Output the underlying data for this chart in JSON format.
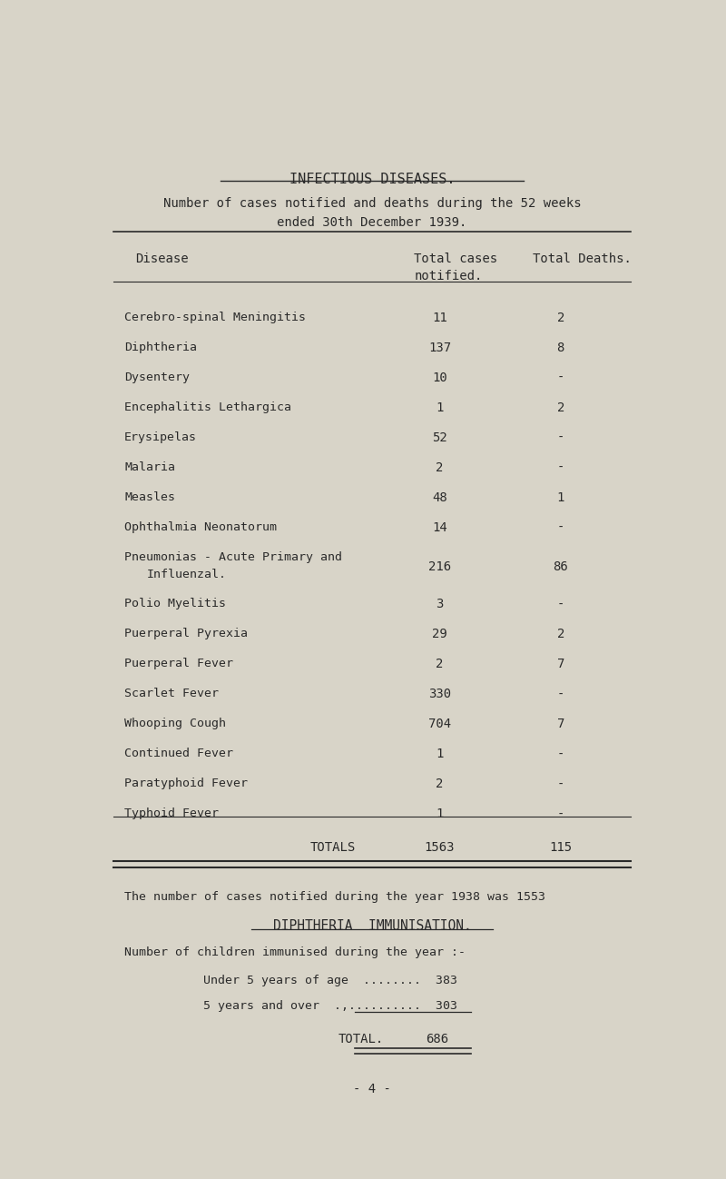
{
  "bg_color": "#d8d4c8",
  "text_color": "#2a2a2a",
  "title": "INFECTIOUS DISEASES.",
  "subtitle1": "Number of cases notified and deaths during the 52 weeks",
  "subtitle2": "ended 30th December 1939.",
  "diseases": [
    [
      "Cerebro-spinal Meningitis",
      "11",
      "2"
    ],
    [
      "Diphtheria",
      "137",
      "8"
    ],
    [
      "Dysentery",
      "10",
      "-"
    ],
    [
      "Encephalitis Lethargica",
      "1",
      "2"
    ],
    [
      "Erysipelas",
      "52",
      "-"
    ],
    [
      "Malaria",
      "2",
      "-"
    ],
    [
      "Measles",
      "48",
      "1"
    ],
    [
      "Ophthalmia Neonatorum",
      "14",
      "-"
    ],
    [
      "Pneumonias - Acute Primary and|        Influenzal.",
      "216",
      "86"
    ],
    [
      "Polio Myelitis",
      "3",
      "-"
    ],
    [
      "Puerperal Pyrexia",
      "29",
      "2"
    ],
    [
      "Puerperal Fever",
      "2",
      "7"
    ],
    [
      "Scarlet Fever",
      "330",
      "-"
    ],
    [
      "Whooping Cough",
      "704",
      "7"
    ],
    [
      "Continued Fever",
      "1",
      "-"
    ],
    [
      "Paratyphoid Fever",
      "2",
      "-"
    ],
    [
      "Typhoid Fever",
      "1",
      "-"
    ]
  ],
  "totals_label": "TOTALS",
  "totals_cases": "1563",
  "totals_deaths": "115",
  "footer1": "The number of cases notified during the year 1938 was 1553",
  "footer2": "DIPHTHERIA  IMMUNISATION.",
  "footer3": "Number of children immunised during the year :-",
  "footer4a": "Under 5 years of age  ........  383",
  "footer4b": "5 years and over  .,..........  303",
  "footer5_label": "TOTAL.",
  "footer5_value": "686",
  "page_num": "- 4 -"
}
